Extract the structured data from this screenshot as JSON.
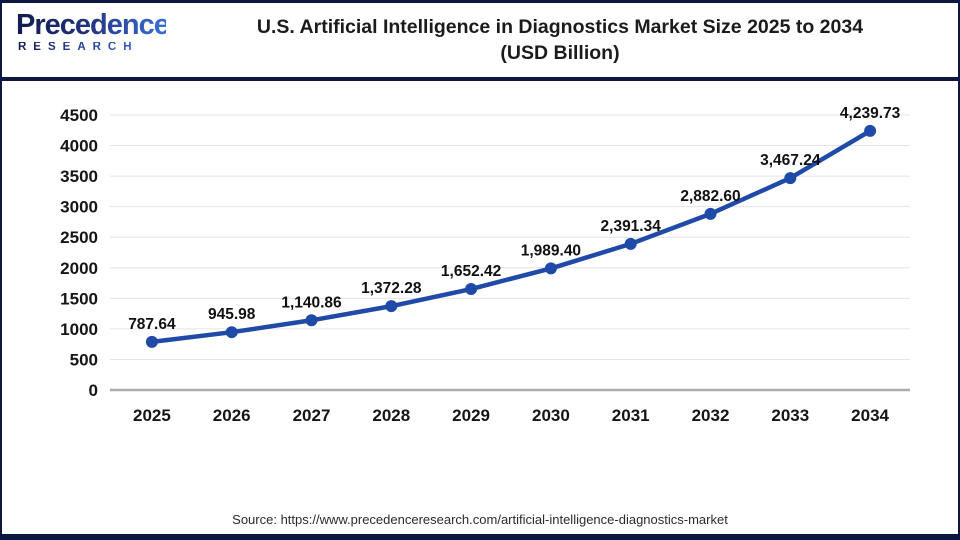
{
  "header": {
    "logo": {
      "brand": "Precedence",
      "sub": "RESEARCH"
    },
    "title_line1": "U.S. Artificial Intelligence in Diagnostics Market Size 2025 to 2034",
    "title_line2": "(USD Billion)"
  },
  "chart_data": {
    "type": "line",
    "title": "U.S. Artificial Intelligence in Diagnostics Market Size 2025 to 2034 (USD Billion)",
    "categories": [
      "2025",
      "2026",
      "2027",
      "2028",
      "2029",
      "2030",
      "2031",
      "2032",
      "2033",
      "2034"
    ],
    "values": [
      787.64,
      945.98,
      1140.86,
      1372.28,
      1652.42,
      1989.4,
      2391.34,
      2882.6,
      3467.24,
      4239.73
    ],
    "point_labels": [
      "787.64",
      "945.98",
      "1,140.86",
      "1,372.28",
      "1,652.42",
      "1,989.40",
      "2,391.34",
      "2,882.60",
      "3,467.24",
      "4,239.73"
    ],
    "xlabel": "",
    "ylabel": "",
    "ylim": [
      0,
      4500
    ],
    "yticks": [
      0,
      500,
      1000,
      1500,
      2000,
      2500,
      3000,
      3500,
      4000,
      4500
    ],
    "grid": "horizontal",
    "legend": "none",
    "line_color": "#1f4aa8",
    "marker": "circle"
  },
  "footer": {
    "source_text": "Source: https://www.precedenceresearch.com/artificial-intelligence-diagnostics-market"
  },
  "colors": {
    "frame_navy": "#0e1743",
    "line_blue": "#1f4aa8",
    "grid": "#e4e4e4",
    "axis": "#acacac",
    "text": "#111111"
  }
}
